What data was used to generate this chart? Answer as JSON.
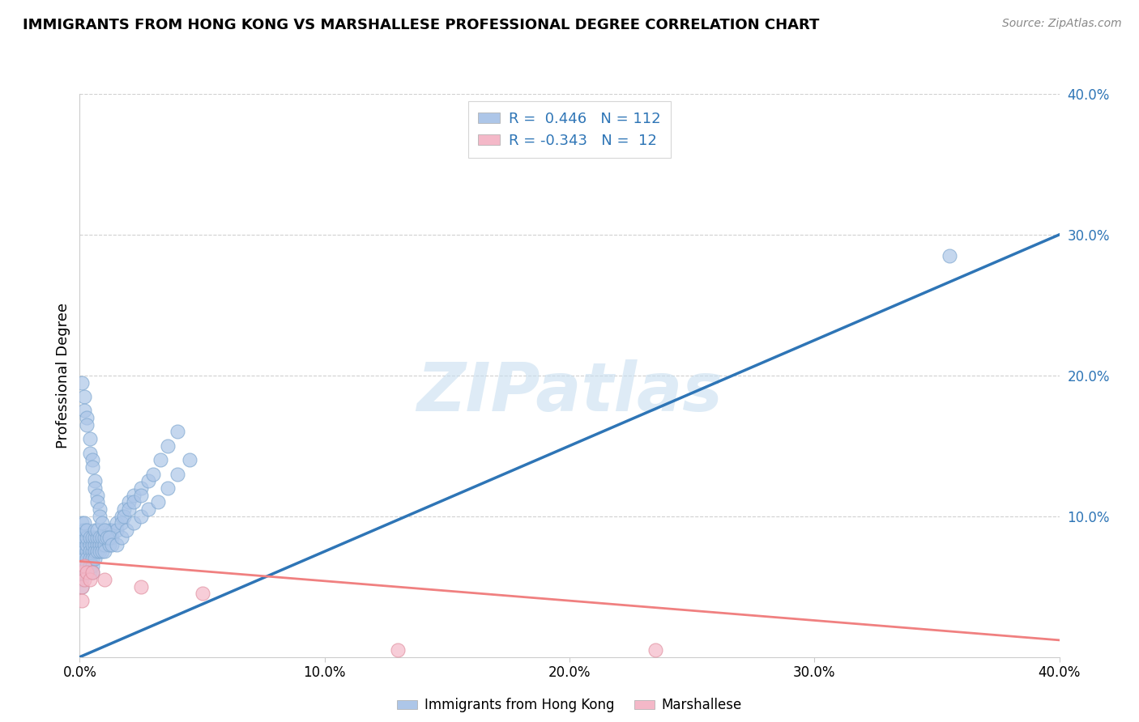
{
  "title": "IMMIGRANTS FROM HONG KONG VS MARSHALLESE PROFESSIONAL DEGREE CORRELATION CHART",
  "source": "Source: ZipAtlas.com",
  "ylabel": "Professional Degree",
  "watermark": "ZIPatlas",
  "xlim": [
    0.0,
    0.4
  ],
  "ylim": [
    0.0,
    0.4
  ],
  "xticks": [
    0.0,
    0.1,
    0.2,
    0.3,
    0.4
  ],
  "yticks": [
    0.1,
    0.2,
    0.3,
    0.4
  ],
  "xticklabels": [
    "0.0%",
    "10.0%",
    "20.0%",
    "30.0%",
    "40.0%"
  ],
  "right_yticklabels": [
    "10.0%",
    "20.0%",
    "30.0%",
    "40.0%"
  ],
  "right_yticks": [
    0.1,
    0.2,
    0.3,
    0.4
  ],
  "legend_labels_bottom": [
    "Immigrants from Hong Kong",
    "Marshallese"
  ],
  "blue_scatter_x": [
    0.001,
    0.001,
    0.001,
    0.001,
    0.001,
    0.001,
    0.001,
    0.001,
    0.001,
    0.001,
    0.002,
    0.002,
    0.002,
    0.002,
    0.002,
    0.002,
    0.002,
    0.002,
    0.003,
    0.003,
    0.003,
    0.003,
    0.003,
    0.003,
    0.003,
    0.004,
    0.004,
    0.004,
    0.004,
    0.004,
    0.004,
    0.005,
    0.005,
    0.005,
    0.005,
    0.005,
    0.005,
    0.006,
    0.006,
    0.006,
    0.006,
    0.006,
    0.007,
    0.007,
    0.007,
    0.007,
    0.008,
    0.008,
    0.008,
    0.009,
    0.009,
    0.009,
    0.01,
    0.01,
    0.01,
    0.01,
    0.012,
    0.012,
    0.012,
    0.013,
    0.013,
    0.015,
    0.015,
    0.017,
    0.017,
    0.018,
    0.018,
    0.02,
    0.02,
    0.022,
    0.022,
    0.025,
    0.025,
    0.028,
    0.03,
    0.033,
    0.036,
    0.04,
    0.001,
    0.002,
    0.002,
    0.003,
    0.003,
    0.004,
    0.004,
    0.005,
    0.005,
    0.006,
    0.006,
    0.007,
    0.007,
    0.008,
    0.008,
    0.009,
    0.01,
    0.011,
    0.012,
    0.013,
    0.015,
    0.017,
    0.019,
    0.022,
    0.025,
    0.028,
    0.032,
    0.036,
    0.04,
    0.045
  ],
  "blue_scatter_y": [
    0.075,
    0.08,
    0.085,
    0.09,
    0.07,
    0.065,
    0.06,
    0.095,
    0.055,
    0.05,
    0.08,
    0.085,
    0.09,
    0.075,
    0.07,
    0.065,
    0.06,
    0.095,
    0.075,
    0.08,
    0.085,
    0.07,
    0.065,
    0.06,
    0.09,
    0.08,
    0.085,
    0.075,
    0.07,
    0.065,
    0.06,
    0.075,
    0.08,
    0.085,
    0.07,
    0.065,
    0.06,
    0.08,
    0.085,
    0.075,
    0.07,
    0.09,
    0.08,
    0.075,
    0.085,
    0.09,
    0.08,
    0.075,
    0.085,
    0.08,
    0.075,
    0.085,
    0.08,
    0.085,
    0.09,
    0.075,
    0.085,
    0.09,
    0.08,
    0.09,
    0.085,
    0.095,
    0.09,
    0.1,
    0.095,
    0.105,
    0.1,
    0.11,
    0.105,
    0.115,
    0.11,
    0.12,
    0.115,
    0.125,
    0.13,
    0.14,
    0.15,
    0.16,
    0.195,
    0.185,
    0.175,
    0.17,
    0.165,
    0.155,
    0.145,
    0.14,
    0.135,
    0.125,
    0.12,
    0.115,
    0.11,
    0.105,
    0.1,
    0.095,
    0.09,
    0.085,
    0.085,
    0.08,
    0.08,
    0.085,
    0.09,
    0.095,
    0.1,
    0.105,
    0.11,
    0.12,
    0.13,
    0.14
  ],
  "blue_outlier_x": [
    0.355
  ],
  "blue_outlier_y": [
    0.285
  ],
  "pink_scatter_x": [
    0.001,
    0.001,
    0.001,
    0.002,
    0.002,
    0.003,
    0.004,
    0.005,
    0.01,
    0.025,
    0.05,
    0.13,
    0.235
  ],
  "pink_scatter_y": [
    0.06,
    0.05,
    0.04,
    0.065,
    0.055,
    0.06,
    0.055,
    0.06,
    0.055,
    0.05,
    0.045,
    0.005,
    0.005
  ],
  "blue_line_x": [
    0.0,
    0.4
  ],
  "blue_line_y": [
    0.0,
    0.3
  ],
  "pink_line_x": [
    0.0,
    0.4
  ],
  "pink_line_y": [
    0.068,
    0.012
  ],
  "blue_scatter_color": "#adc6e8",
  "pink_scatter_color": "#f4b8c8",
  "pink_line_color": "#f08080",
  "blue_line_color": "#2e75b6",
  "grid_color": "#d0d0d0",
  "background_color": "#ffffff",
  "title_fontsize": 13,
  "axis_label_fontsize": 13,
  "tick_fontsize": 12,
  "watermark_fontsize": 60,
  "watermark_color": "#c8dff0",
  "watermark_alpha": 0.6
}
